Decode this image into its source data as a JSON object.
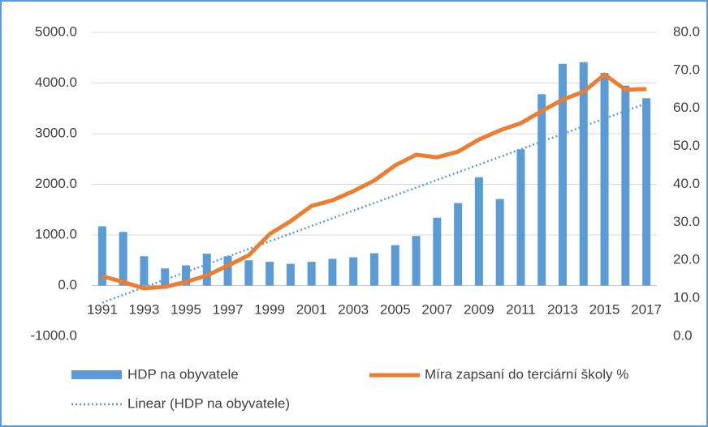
{
  "chart_data": {
    "type": "bar_line",
    "categories": [
      "1991",
      null,
      "1993",
      null,
      "1995",
      null,
      "1997",
      null,
      "1999",
      null,
      "2001",
      null,
      "2003",
      null,
      "2005",
      null,
      "2007",
      null,
      "2009",
      null,
      "2011",
      null,
      "2013",
      null,
      "2015",
      null,
      "2017"
    ],
    "series": [
      {
        "name": "HDP na obyvatele",
        "color": "#5b9bd5",
        "type": "bar",
        "values": [
          1170,
          1060,
          580,
          340,
          400,
          630,
          580,
          500,
          470,
          430,
          470,
          530,
          560,
          640,
          800,
          980,
          1340,
          1630,
          2140,
          1710,
          2690,
          3780,
          4380,
          4410,
          4200,
          3950,
          3700
        ]
      },
      {
        "name": "Míra zapsaní do terciární školy %",
        "color": "#ed7d31",
        "type": "line",
        "axis": "y2",
        "values": [
          15.8,
          14.3,
          12.6,
          13.0,
          14.3,
          16.0,
          18.6,
          21.3,
          26.9,
          30.3,
          34.3,
          35.8,
          38.2,
          41.0,
          45.0,
          47.8,
          47.1,
          48.6,
          51.8,
          54.2,
          56.1,
          59.3,
          62.3,
          64.4,
          68.9,
          64.9,
          65.1
        ]
      }
    ],
    "trendline": {
      "name": "Linear (HDP na obyvatele)",
      "color": "#5b9bd5",
      "of": "linear"
    },
    "ylim": [
      -1000,
      5000
    ],
    "yticks": [
      {
        "value": -1000,
        "label": "-1000.0"
      },
      {
        "value": 0,
        "label": "0.0"
      },
      {
        "value": 1000,
        "label": "1000.0"
      },
      {
        "value": 2000,
        "label": "2000.0"
      },
      {
        "value": 3000,
        "label": "3000.0"
      },
      {
        "value": 4000,
        "label": "4000.0"
      },
      {
        "value": 5000,
        "label": "5000.0"
      }
    ],
    "y2lim": [
      0,
      80
    ],
    "y2ticks": [
      {
        "value": 0,
        "label": "0.0"
      },
      {
        "value": 10,
        "label": "10.0"
      },
      {
        "value": 20,
        "label": "20.0"
      },
      {
        "value": 30,
        "label": "30.0"
      },
      {
        "value": 40,
        "label": "40.0"
      },
      {
        "value": 50,
        "label": "50.0"
      },
      {
        "value": 60,
        "label": "60.0"
      },
      {
        "value": 70,
        "label": "70.0"
      },
      {
        "value": 80,
        "label": "80.0"
      }
    ],
    "grid": true
  }
}
